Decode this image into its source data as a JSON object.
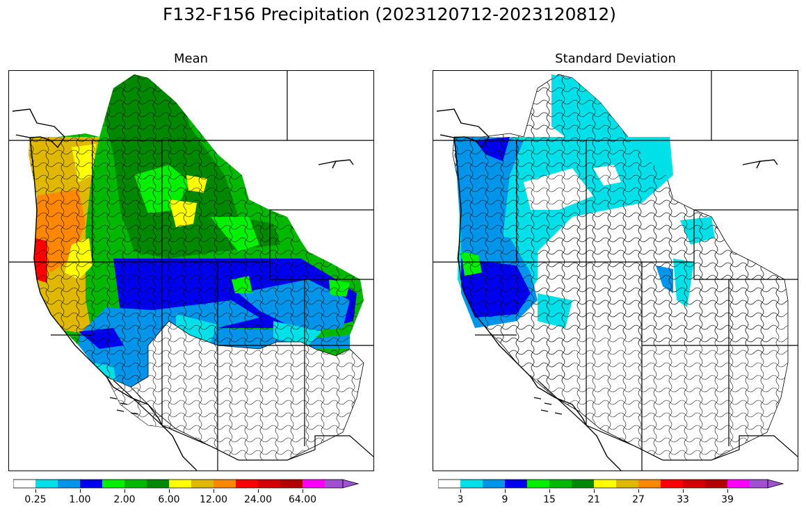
{
  "title": "F132-F156 Precipitation (2023120712-2023120812)",
  "panels": [
    {
      "id": "mean",
      "title": "Mean",
      "colorbar": {
        "colors": [
          "#ffffff",
          "#00e0e8",
          "#0095ea",
          "#0000f0",
          "#00f000",
          "#00b800",
          "#008800",
          "#ffff00",
          "#e0b800",
          "#ff8800",
          "#ff0000",
          "#d40000",
          "#b40000",
          "#ff00ff",
          "#a050d0"
        ],
        "tick_labels": [
          "0.25",
          "1.00",
          "2.00",
          "6.00",
          "12.00",
          "24.00",
          "64.00"
        ],
        "tick_boundaries": [
          1,
          3,
          5,
          7,
          9,
          11,
          13
        ]
      }
    },
    {
      "id": "stddev",
      "title": "Standard Deviation",
      "colorbar": {
        "colors": [
          "#ffffff",
          "#00e0e8",
          "#0095ea",
          "#0000f0",
          "#00f000",
          "#00b800",
          "#008800",
          "#ffff00",
          "#e0b800",
          "#ff8800",
          "#ff0000",
          "#d40000",
          "#b40000",
          "#ff00ff",
          "#a050d0"
        ],
        "tick_labels": [
          "3",
          "9",
          "15",
          "21",
          "27",
          "33",
          "39"
        ],
        "tick_boundaries": [
          1,
          3,
          5,
          7,
          9,
          11,
          13
        ]
      }
    }
  ]
}
